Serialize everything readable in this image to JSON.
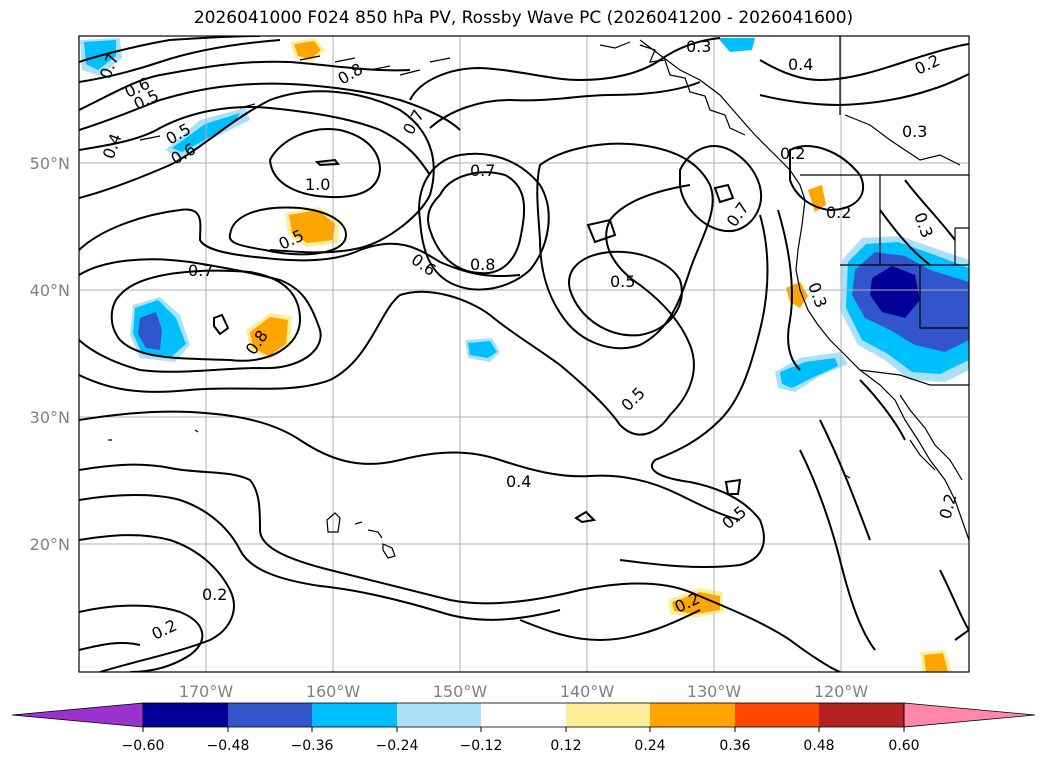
{
  "title": "2026041000 F024 850 hPa PV, Rossby Wave PC (2026041200 - 2026041600)",
  "lat_labels": [
    "50°N",
    "40°N",
    "30°N",
    "20°N"
  ],
  "lon_labels": [
    "170°W",
    "160°W",
    "150°W",
    "140°W",
    "130°W",
    "120°W"
  ],
  "contour_labels": {
    "c0_7a": "0.7",
    "c0_6a": "0.6",
    "c0_5a": "0.5",
    "c0_4a": "0.4",
    "c0_5b": "0.5",
    "c0_6b": "0.6",
    "c0_8a": "0.8",
    "c0_7b": "0.7",
    "c0_3a": "0.3",
    "c0_4b": "0.4",
    "c0_2a": "0.2",
    "c0_3b": "0.3",
    "c1_0": "1.0",
    "c0_7c": "0.7",
    "c0_2b": "0.2",
    "c0_7d": "0.7",
    "c0_5c": "0.5",
    "c0_6c": "0.6",
    "c0_8b": "0.8",
    "c0_3c": "0.3",
    "c0_2c": "0.2",
    "c0_7e": "0.7",
    "c0_8c": "0.8",
    "c0_5d": "0.5",
    "c0_3d": "0.3",
    "c0_5e": "0.5",
    "c0_4c": "0.4",
    "c0_5f": "0.5",
    "c0_2d": "0.2",
    "c0_2e": "0.2",
    "c0_2f": "0.2",
    "c0_2g": "0.2"
  },
  "colorbar": {
    "colors": [
      "#9933cc",
      "#000099",
      "#3355cc",
      "#00bfff",
      "#aae0fa",
      "#ffffff",
      "#ffee99",
      "#ffa500",
      "#ff4500",
      "#b22222",
      "#ff88aa"
    ],
    "ticks": [
      "−0.60",
      "−0.48",
      "−0.36",
      "−0.24",
      "−0.12",
      "0.12",
      "0.24",
      "0.36",
      "0.48",
      "0.60"
    ]
  }
}
